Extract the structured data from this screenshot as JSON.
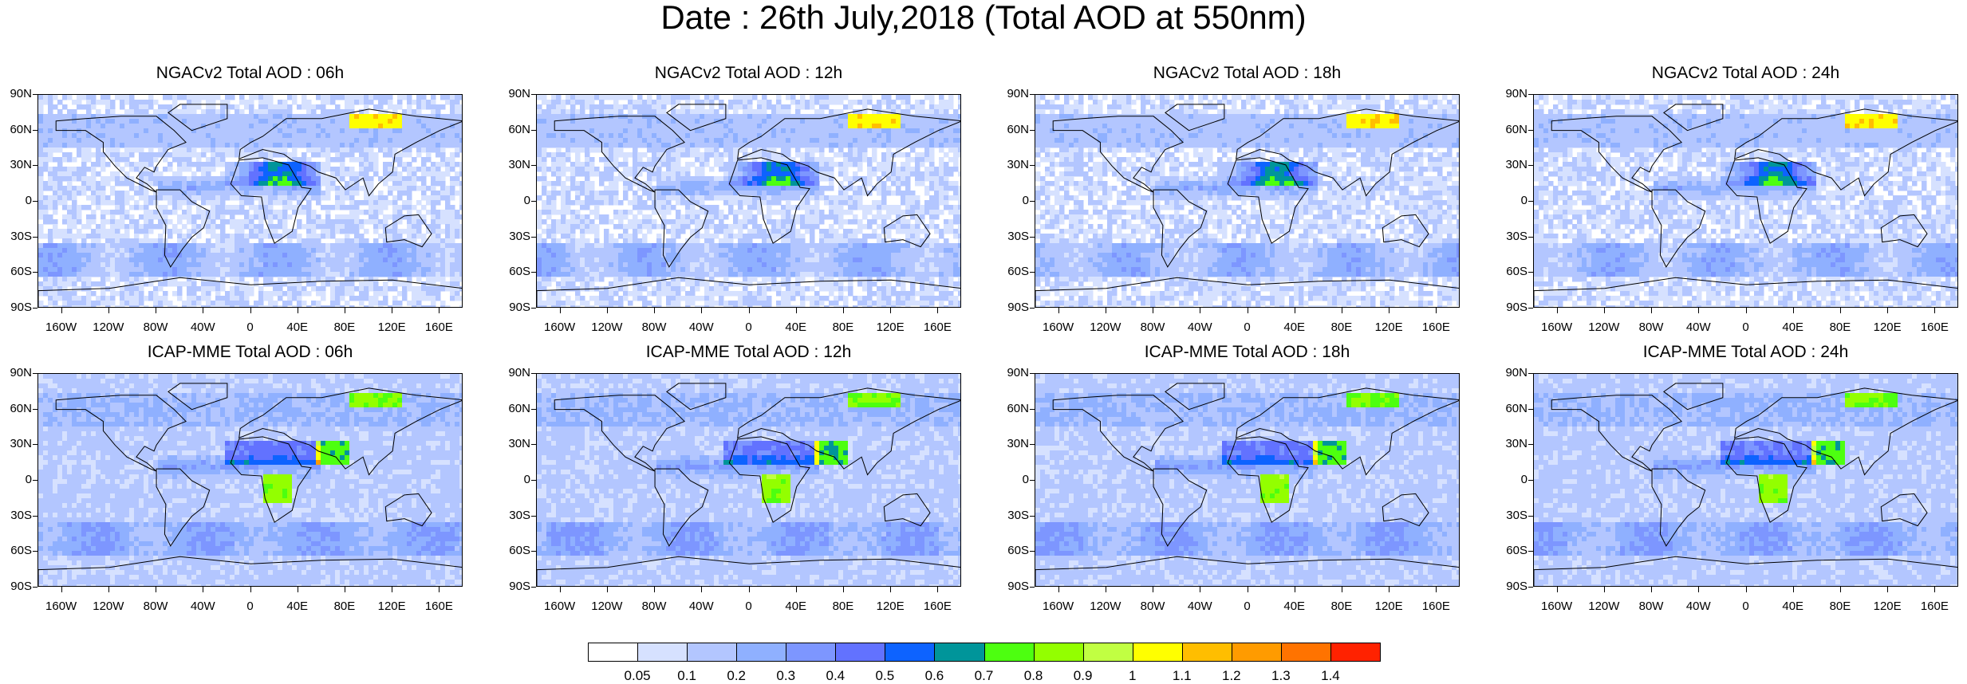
{
  "title": "Date : 26th July,2018 (Total AOD at 550nm)",
  "lat_labels": [
    "90N",
    "60N",
    "30N",
    "0",
    "30S",
    "60S",
    "90S"
  ],
  "lon_labels": [
    "160W",
    "120W",
    "80W",
    "40W",
    "0",
    "40E",
    "80E",
    "120E",
    "160E"
  ],
  "panels": [
    {
      "title": "NGACv2 Total AOD : 06h"
    },
    {
      "title": "NGACv2 Total AOD : 12h"
    },
    {
      "title": "NGACv2 Total AOD : 18h"
    },
    {
      "title": "NGACv2 Total AOD : 24h"
    },
    {
      "title": "ICAP-MME Total AOD : 06h"
    },
    {
      "title": "ICAP-MME Total AOD : 12h"
    },
    {
      "title": "ICAP-MME Total AOD : 18h"
    },
    {
      "title": "ICAP-MME Total AOD : 24h"
    }
  ],
  "colorbar": {
    "labels": [
      "0.05",
      "0.1",
      "0.2",
      "0.3",
      "0.4",
      "0.5",
      "0.6",
      "0.7",
      "0.8",
      "0.9",
      "1",
      "1.1",
      "1.2",
      "1.3",
      "1.4"
    ],
    "colors": [
      "#ffffff",
      "#d6e1ff",
      "#b3c6ff",
      "#8fb0ff",
      "#7d96ff",
      "#6272ff",
      "#0d63ff",
      "#00959a",
      "#4dff10",
      "#93ff00",
      "#c1ff42",
      "#ffff00",
      "#ffbe00",
      "#ff9b00",
      "#ff7300",
      "#ff2200"
    ]
  }
}
